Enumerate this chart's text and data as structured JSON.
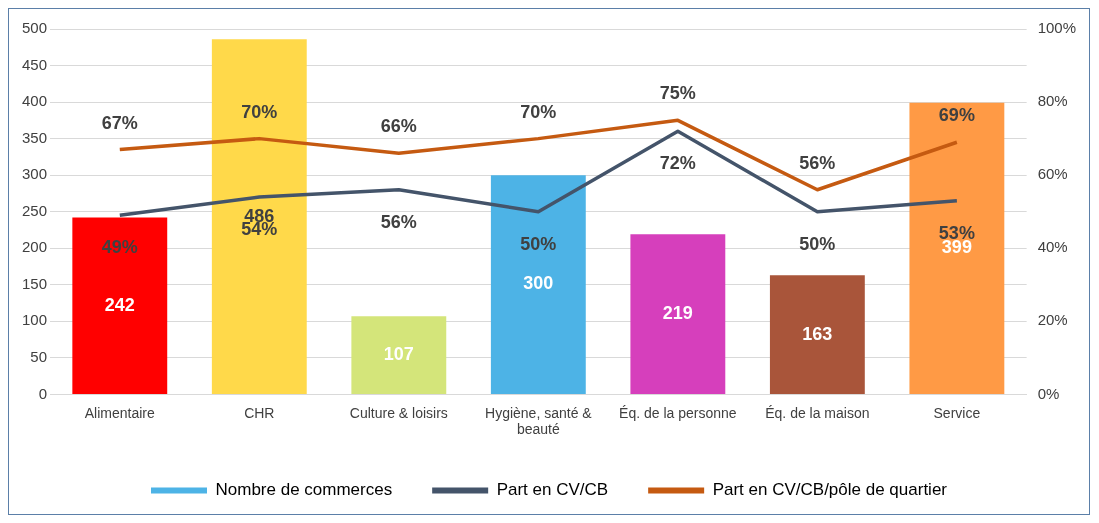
{
  "chart_data": {
    "type": "bar",
    "categories": [
      "Alimentaire",
      "CHR",
      "Culture & loisirs",
      "Hygiène, santé & beauté",
      "Éq. de la personne",
      "Éq. de la maison",
      "Service"
    ],
    "series": [
      {
        "name": "Nombre de commerces",
        "color": "#4db3e6",
        "colors": [
          "#ff0000",
          "#ffd94a",
          "#d4e57a",
          "#4db3e6",
          "#d63fbc",
          "#a9553a",
          "#ff9a45"
        ],
        "values": [
          242,
          486,
          107,
          300,
          219,
          163,
          399
        ],
        "value_labels": [
          "242",
          "486",
          "107",
          "300",
          "219",
          "163",
          "399"
        ]
      },
      {
        "name": "Part en CV/CB",
        "type": "line",
        "axis": "y2",
        "color": "#44546a",
        "values": [
          49,
          54,
          56,
          50,
          72,
          50,
          53
        ],
        "value_labels": [
          "49%",
          "54%",
          "56%",
          "50%",
          "72%",
          "50%",
          "53%"
        ]
      },
      {
        "name": "Part en CV/CB/pôle de quartier",
        "type": "line",
        "axis": "y2",
        "color": "#c55a11",
        "values": [
          67,
          70,
          66,
          70,
          75,
          56,
          69
        ],
        "value_labels": [
          "67%",
          "70%",
          "66%",
          "70%",
          "75%",
          "56%",
          "69%"
        ]
      }
    ],
    "ylim": [
      0,
      500
    ],
    "yticks": [
      0,
      50,
      100,
      150,
      200,
      250,
      300,
      350,
      400,
      450,
      500
    ],
    "y2lim": [
      0,
      100
    ],
    "y2ticks": [
      {
        "value": 0,
        "label": "0%"
      },
      {
        "value": 20,
        "label": "20%"
      },
      {
        "value": 40,
        "label": "40%"
      },
      {
        "value": 60,
        "label": "60%"
      },
      {
        "value": 80,
        "label": "80%"
      },
      {
        "value": 100,
        "label": "100%"
      }
    ],
    "grid": "y",
    "legend": "bottom",
    "marker": "none",
    "line_style": "solid"
  }
}
